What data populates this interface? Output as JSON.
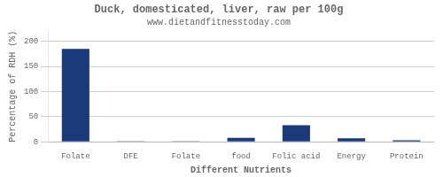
{
  "chart_data": {
    "type": "bar",
    "title": "Duck, domesticated, liver, raw per 100g",
    "subtitle": "www.dietandfitnesstoday.com",
    "xlabel": "Different Nutrients",
    "ylabel": "Percentage of RDH (%)",
    "categories": [
      "Folate",
      "DFE",
      "Folate",
      "food",
      "Folic acid",
      "Energy",
      "Protein"
    ],
    "values": [
      185,
      0.3,
      0.3,
      8,
      33,
      7,
      3
    ],
    "color": "#1a3a7a",
    "ylim": [
      0,
      220
    ],
    "yticks": [
      0,
      50,
      100,
      150,
      200
    ],
    "grid": true
  }
}
